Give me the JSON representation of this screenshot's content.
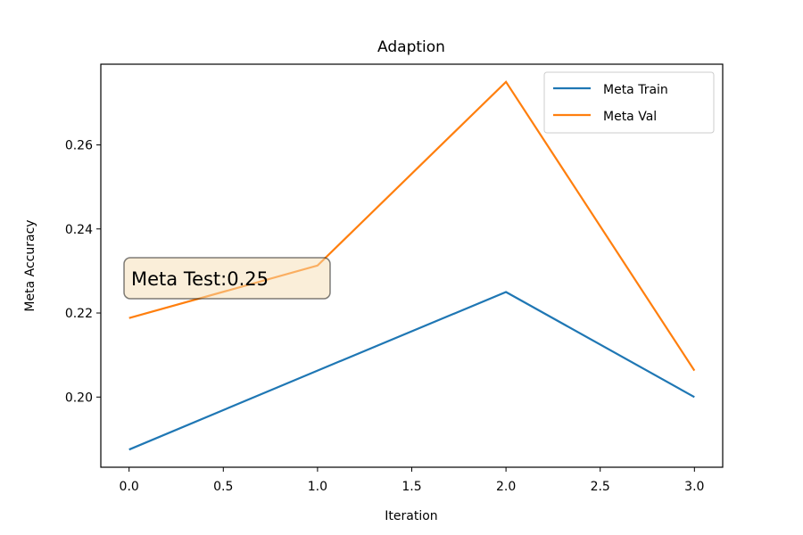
{
  "chart_data": {
    "type": "line",
    "title": "Adaption",
    "xlabel": "Iteration",
    "ylabel": "Meta Accuracy",
    "x": [
      0,
      1,
      2,
      3
    ],
    "series": [
      {
        "name": "Meta Train",
        "color": "#1f77b4",
        "values": [
          0.1875,
          0.2063,
          0.225,
          0.2
        ]
      },
      {
        "name": "Meta Val",
        "color": "#ff7f0e",
        "values": [
          0.2188,
          0.2313,
          0.275,
          0.2063
        ]
      }
    ],
    "xlim": [
      -0.15,
      3.15
    ],
    "ylim": [
      0.1833,
      0.2792
    ],
    "xticks": [
      0.0,
      0.5,
      1.0,
      1.5,
      2.0,
      2.5,
      3.0
    ],
    "xtick_labels": [
      "0.0",
      "0.5",
      "1.0",
      "1.5",
      "2.0",
      "2.5",
      "3.0"
    ],
    "yticks": [
      0.2,
      0.22,
      0.24,
      0.26
    ],
    "ytick_labels": [
      "0.20",
      "0.22",
      "0.24",
      "0.26"
    ],
    "grid": false,
    "legend_position": "upper-right",
    "annotation": {
      "text": "Meta Test:0.25",
      "box_color": "#f5deb3"
    }
  }
}
